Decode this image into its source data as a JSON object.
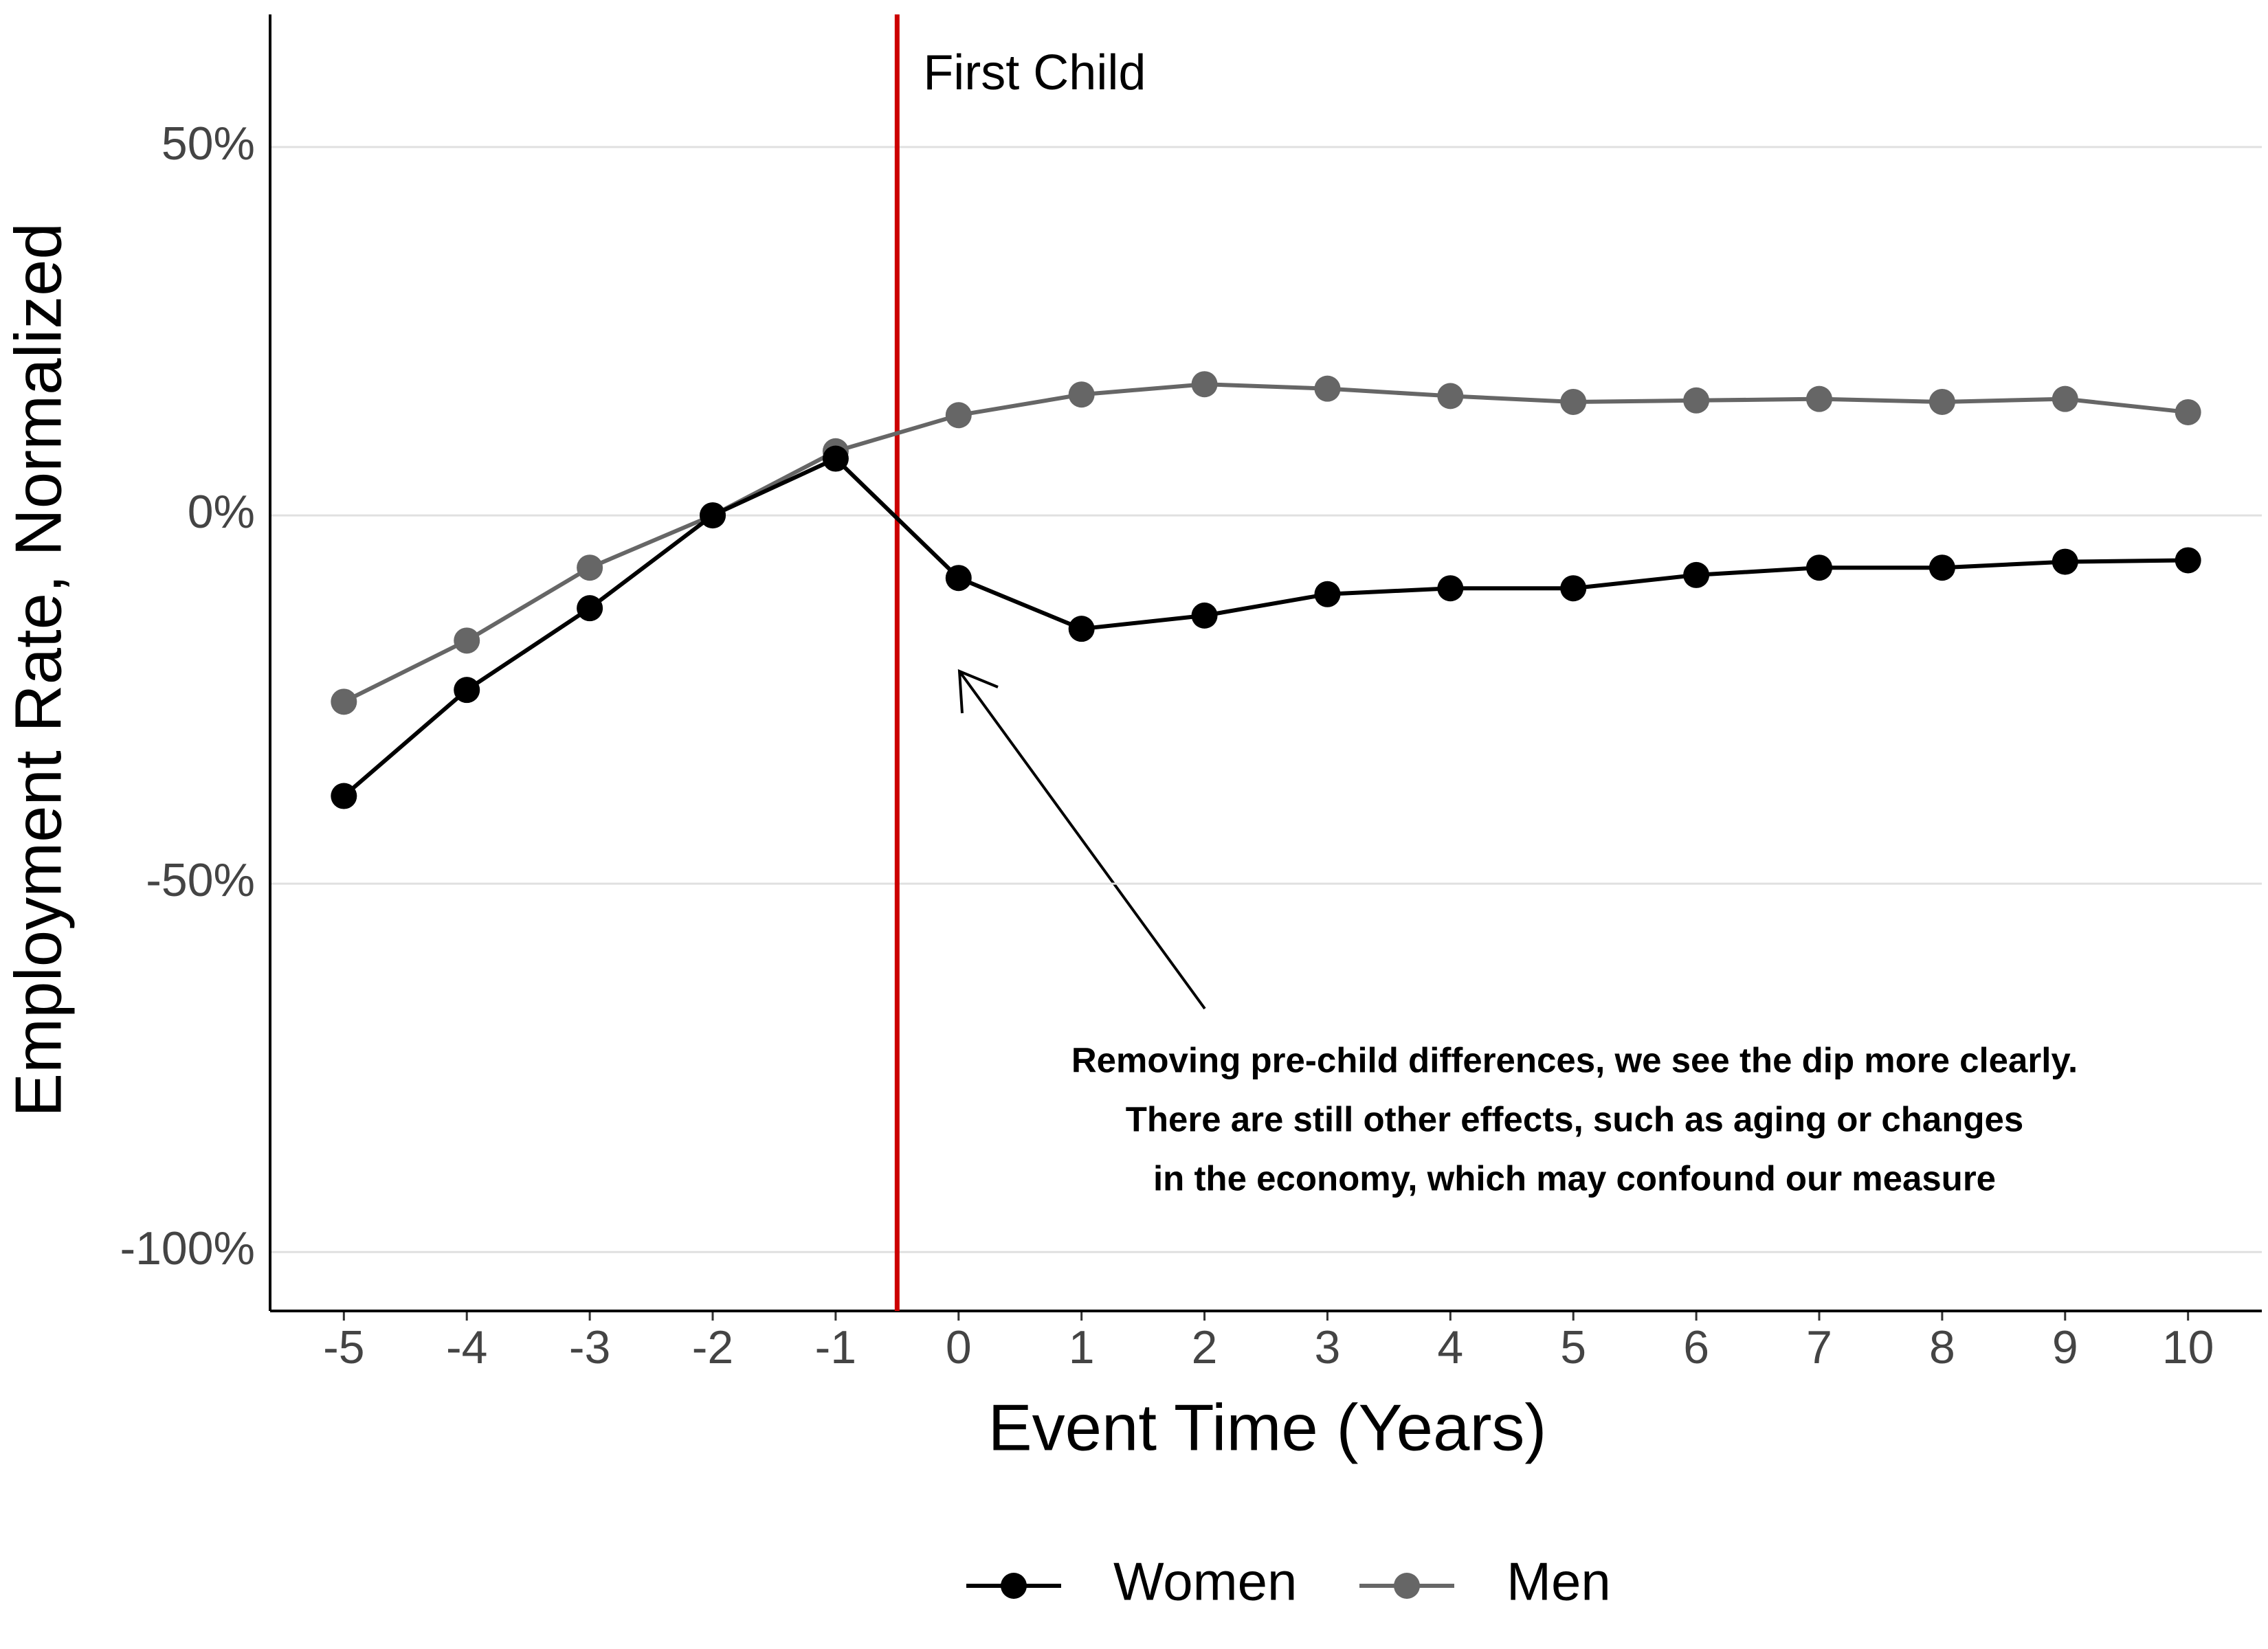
{
  "chart_data": {
    "type": "line",
    "xlabel": "Event Time (Years)",
    "ylabel": "Employment Rate, Normalized",
    "x": [
      -5,
      -4,
      -3,
      -2,
      -1,
      0,
      1,
      2,
      3,
      4,
      5,
      6,
      7,
      8,
      9,
      10
    ],
    "series": [
      {
        "name": "Women",
        "color": "#000000",
        "values": [
          -38.1,
          -23.7,
          -12.6,
          0,
          7.7,
          -8.5,
          -15.4,
          -13.6,
          -10.7,
          -9.9,
          -9.9,
          -8.1,
          -7.1,
          -7.1,
          -6.3,
          -6.1
        ]
      },
      {
        "name": "Men",
        "color": "#666666",
        "values": [
          -25.3,
          -17.0,
          -7.1,
          0,
          8.7,
          13.6,
          16.4,
          17.8,
          17.2,
          16.2,
          15.4,
          15.6,
          15.8,
          15.4,
          15.8,
          14.0
        ]
      }
    ],
    "xlim": [
      -5.6,
      10.6
    ],
    "xticks": [
      -5,
      -4,
      -3,
      -2,
      -1,
      0,
      1,
      2,
      3,
      4,
      5,
      6,
      7,
      8,
      9,
      10
    ],
    "ylim": [
      -108,
      68
    ],
    "yticks": [
      {
        "value": -100,
        "label": "-100%"
      },
      {
        "value": -50,
        "label": "-50%"
      },
      {
        "value": 0,
        "label": "0%"
      },
      {
        "value": 50,
        "label": "50%"
      }
    ],
    "grid": true,
    "legend": "bottom",
    "vline": {
      "x": -0.5,
      "label": "First Child",
      "color": "#cc0000"
    },
    "annotation": [
      "Removing pre-child differences, we see the dip more clearly.",
      "There are still other effects, such as aging or changes",
      "in the economy, which may confound our measure"
    ]
  }
}
